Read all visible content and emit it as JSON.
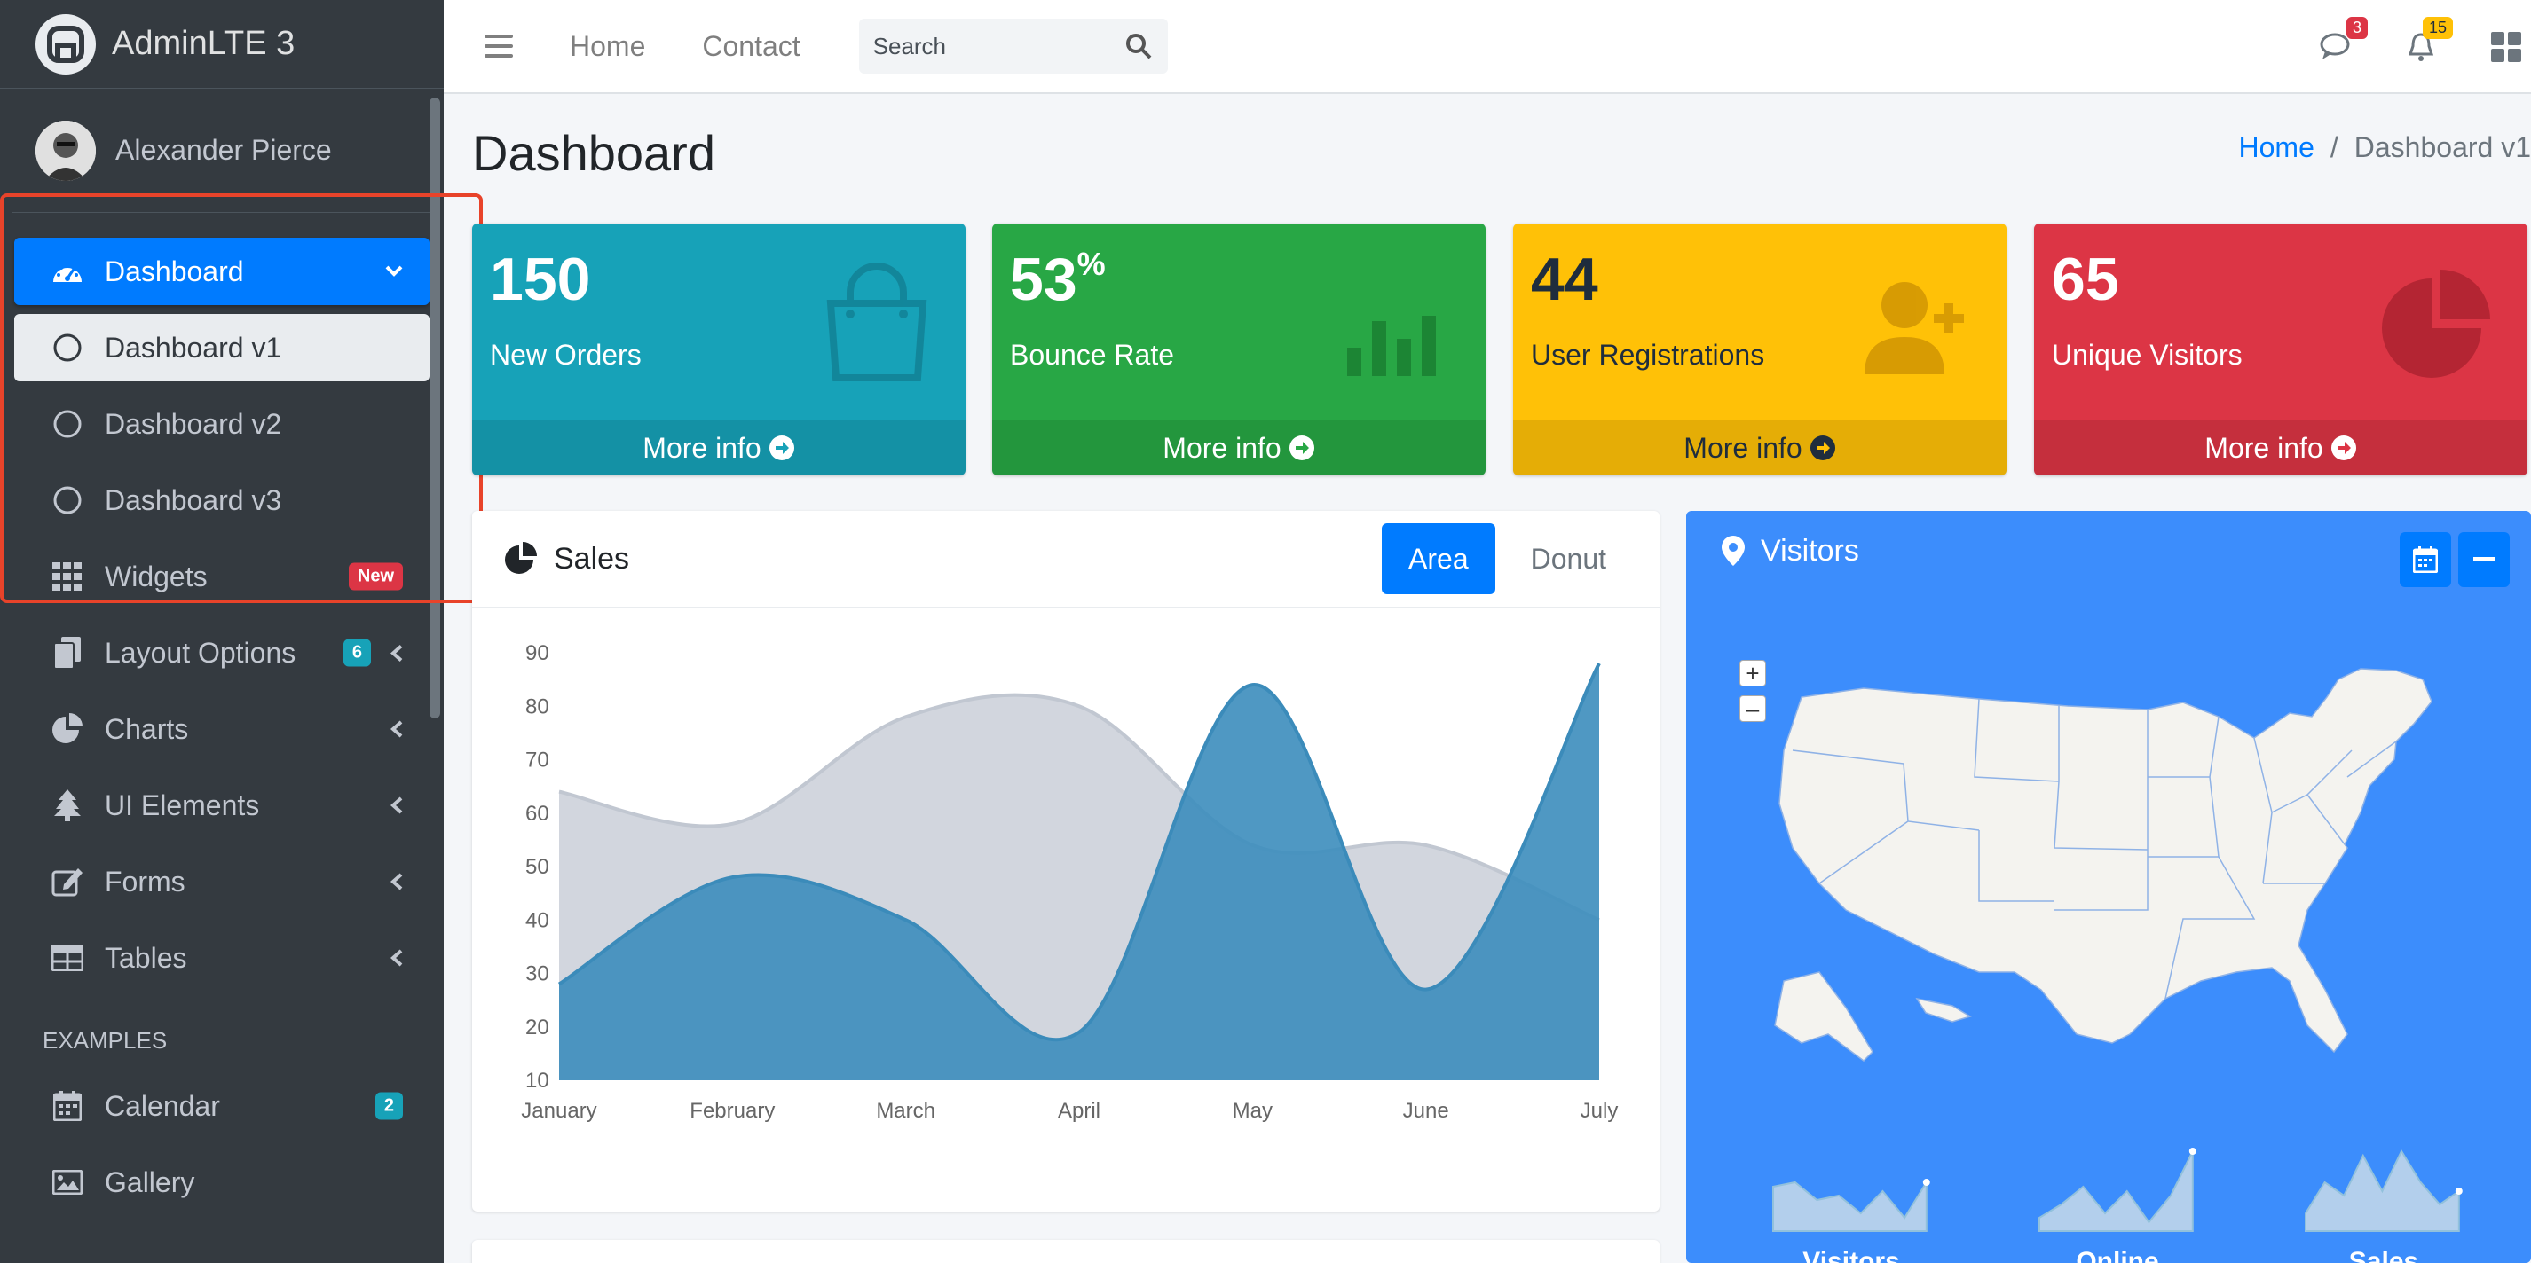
{
  "brand": {
    "name": "AdminLTE 3"
  },
  "user": {
    "name": "Alexander Pierce"
  },
  "sidebar": {
    "items": [
      {
        "label": "Dashboard"
      },
      {
        "label": "Dashboard v1"
      },
      {
        "label": "Dashboard v2"
      },
      {
        "label": "Dashboard v3"
      },
      {
        "label": "Widgets",
        "badge": "New"
      },
      {
        "label": "Layout Options",
        "badge": "6"
      },
      {
        "label": "Charts"
      },
      {
        "label": "UI Elements"
      },
      {
        "label": "Forms"
      },
      {
        "label": "Tables"
      }
    ],
    "section_header": "EXAMPLES",
    "examples": [
      {
        "label": "Calendar",
        "badge": "2"
      },
      {
        "label": "Gallery"
      }
    ]
  },
  "topnav": {
    "links": [
      "Home",
      "Contact"
    ],
    "search_placeholder": "Search",
    "messages_count": "3",
    "notifications_count": "15"
  },
  "page": {
    "title": "Dashboard",
    "breadcrumb": {
      "home": "Home",
      "separator": "/",
      "current": "Dashboard v1"
    }
  },
  "stat_boxes": [
    {
      "value": "150",
      "suffix": "",
      "label": "New Orders",
      "footer": "More info",
      "color": "#17a2b8"
    },
    {
      "value": "53",
      "suffix": "%",
      "label": "Bounce Rate",
      "footer": "More info",
      "color": "#28a745"
    },
    {
      "value": "44",
      "suffix": "",
      "label": "User Registrations",
      "footer": "More info",
      "color": "#ffc107"
    },
    {
      "value": "65",
      "suffix": "",
      "label": "Unique Visitors",
      "footer": "More info",
      "color": "#dc3545"
    }
  ],
  "sales_card": {
    "title": "Sales",
    "tabs": [
      "Area",
      "Donut"
    ],
    "active_tab": "Area"
  },
  "visitors_card": {
    "title": "Visitors",
    "sparklines": [
      {
        "label": "Visitors",
        "values": [
          50,
          55,
          35,
          40,
          20,
          45,
          15,
          55
        ]
      },
      {
        "label": "Online",
        "values": [
          15,
          30,
          50,
          20,
          45,
          10,
          40,
          90
        ]
      },
      {
        "label": "Sales",
        "values": [
          20,
          55,
          40,
          85,
          45,
          90,
          55,
          30,
          45
        ]
      }
    ]
  },
  "chart_data": {
    "type": "area",
    "categories": [
      "January",
      "February",
      "March",
      "April",
      "May",
      "June",
      "July"
    ],
    "ylim": [
      10,
      90
    ],
    "yticks": [
      10,
      20,
      30,
      40,
      50,
      60,
      70,
      80,
      90
    ],
    "grid": false,
    "series": [
      {
        "values": [
          64,
          58,
          78,
          80,
          54,
          54,
          40
        ],
        "color": "#d2d6de"
      },
      {
        "values": [
          28,
          48,
          40,
          19,
          84,
          27,
          88
        ],
        "color": "#3c8dbc"
      }
    ]
  },
  "colors": {
    "primary": "#007bff",
    "sidebar": "#343a40",
    "highlight": "#e8432a"
  }
}
